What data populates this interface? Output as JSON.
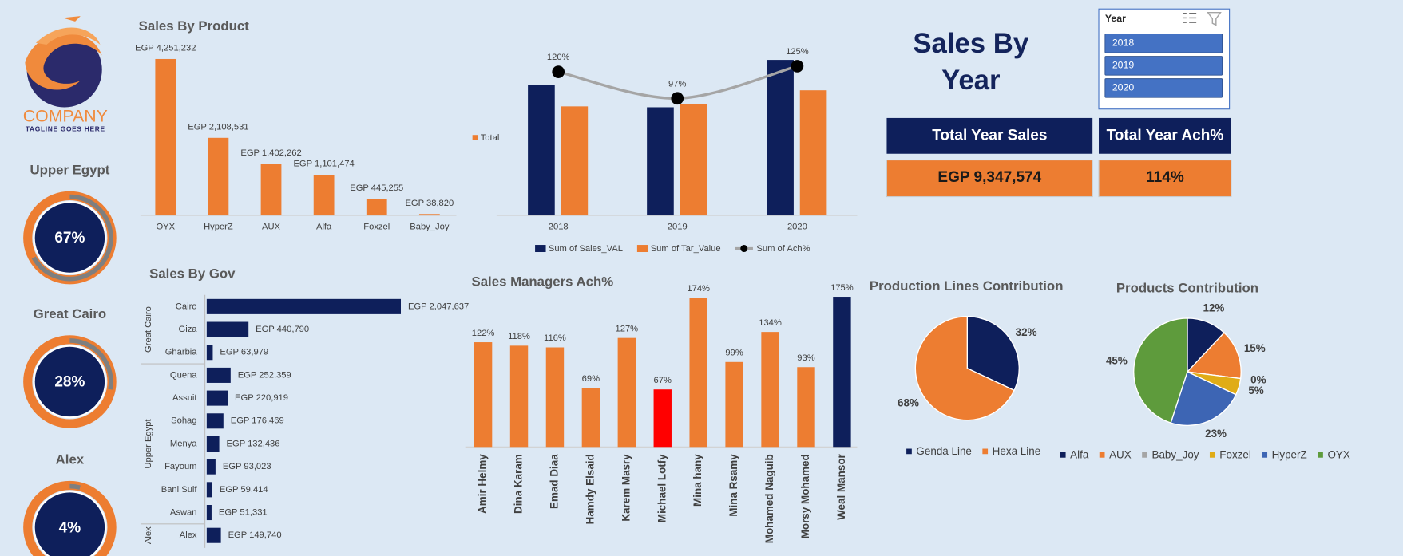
{
  "logo": {
    "name": "COMPANY",
    "tagline": "TAGLINE GOES HERE"
  },
  "header": {
    "title": "Sales By Year"
  },
  "slicer": {
    "title": "Year",
    "items": [
      "2018",
      "2019",
      "2020"
    ]
  },
  "kpis": [
    {
      "label": "Total Year Sales",
      "value": "EGP 9,347,574"
    },
    {
      "label": "Total Year Ach%",
      "value": "114%"
    }
  ],
  "chart_data": [
    {
      "type": "gauge",
      "categories": [
        "Upper Egypt",
        "Great Cairo",
        "Alex"
      ],
      "values": [
        67,
        28,
        4
      ],
      "value_labels": [
        "67%",
        "28%",
        "4%"
      ],
      "color": "#ed7d31",
      "arc_color": "#7f7f7f",
      "center_color": "#0e1f5b"
    },
    {
      "type": "bar",
      "title": "Sales By Product",
      "categories": [
        "OYX",
        "HyperZ",
        "AUX",
        "Alfa",
        "Foxzel",
        "Baby_Joy"
      ],
      "values": [
        4251232,
        2108531,
        1402262,
        1101474,
        445255,
        38820
      ],
      "value_labels": [
        "EGP 4,251,232",
        "EGP 2,108,531",
        "EGP 1,402,262",
        "EGP 1,101,474",
        "EGP 445,255",
        "EGP 38,820"
      ],
      "color": "#ed7d31"
    },
    {
      "type": "combo",
      "categories": [
        "2018",
        "2019",
        "2020"
      ],
      "annotation": "Total",
      "annotation_color": "#ed7d31",
      "series": [
        {
          "name": "Sum of Sales_VAL",
          "color": "#0e1f5b",
          "values": [
            3094700,
            2564700,
            3688000
          ]
        },
        {
          "name": "Sum of Tar_Value",
          "color": "#ed7d31",
          "values": [
            2585900,
            2649500,
            2967400
          ]
        },
        {
          "name": "Sum of  Ach%",
          "color": "#a5a5a5",
          "type": "line",
          "axis": "y2",
          "values": [
            120,
            97,
            125
          ],
          "value_labels": [
            "120%",
            "97%",
            "125%"
          ]
        }
      ]
    },
    {
      "type": "hbar",
      "title": "Sales By Gov",
      "color": "#0e1f5b",
      "groups": [
        {
          "name": "Great Cairo",
          "categories": [
            "Cairo",
            "Giza",
            "Gharbia"
          ],
          "values": [
            2047637,
            440790,
            63979
          ],
          "value_labels": [
            "EGP 2,047,637",
            "EGP 440,790",
            "EGP 63,979"
          ]
        },
        {
          "name": "Upper Egypt",
          "categories": [
            "Quena",
            "Assuit",
            "Sohag",
            "Menya",
            "Fayoum",
            "Bani Suif",
            "Aswan"
          ],
          "values": [
            252359,
            220919,
            176469,
            132436,
            93023,
            59414,
            51331
          ],
          "value_labels": [
            "EGP 252,359",
            "EGP 220,919",
            "EGP 176,469",
            "EGP 132,436",
            "EGP 93,023",
            "EGP 59,414",
            "EGP 51,331"
          ]
        },
        {
          "name": "Alex",
          "categories": [
            "Alex"
          ],
          "values": [
            149740
          ],
          "value_labels": [
            "EGP 149,740"
          ]
        }
      ]
    },
    {
      "type": "bar",
      "title": "Sales Managers Ach%",
      "categories": [
        "Amir Helmy",
        "Dina Karam",
        "Emad Diaa",
        "Hamdy Elsaid",
        "Karem Masry",
        "Michael Lotfy",
        "Mina hany",
        "Mina Rsamy",
        "Mohamed Naguib",
        "Morsy Mohamed",
        "Weal Mansor"
      ],
      "values": [
        122,
        118,
        116,
        69,
        127,
        67,
        174,
        99,
        134,
        93,
        175
      ],
      "value_labels": [
        "122%",
        "118%",
        "116%",
        "69%",
        "127%",
        "67%",
        "174%",
        "99%",
        "134%",
        "93%",
        "175%"
      ],
      "colors": [
        "#ed7d31",
        "#ed7d31",
        "#ed7d31",
        "#ed7d31",
        "#ed7d31",
        "#ff0000",
        "#ed7d31",
        "#ed7d31",
        "#ed7d31",
        "#ed7d31",
        "#0e1f5b"
      ]
    },
    {
      "type": "pie",
      "title": "Production Lines Contribution",
      "categories": [
        "Genda Line",
        "Hexa Line"
      ],
      "values": [
        32,
        68
      ],
      "value_labels": [
        "32%",
        "68%"
      ],
      "colors": [
        "#0e1f5b",
        "#ed7d31"
      ]
    },
    {
      "type": "pie",
      "title": "Products Contribution",
      "categories": [
        "Alfa",
        "AUX",
        "Baby_Joy",
        "Foxzel",
        "HyperZ",
        "OYX"
      ],
      "values": [
        12,
        15,
        0,
        5,
        23,
        45
      ],
      "value_labels": [
        "12%",
        "15%",
        "0%",
        "5%",
        "23%",
        "45%"
      ],
      "colors": [
        "#0e1f5b",
        "#ed7d31",
        "#a5a5a5",
        "#e0ac16",
        "#3d65b4",
        "#5e9b3c"
      ]
    }
  ]
}
